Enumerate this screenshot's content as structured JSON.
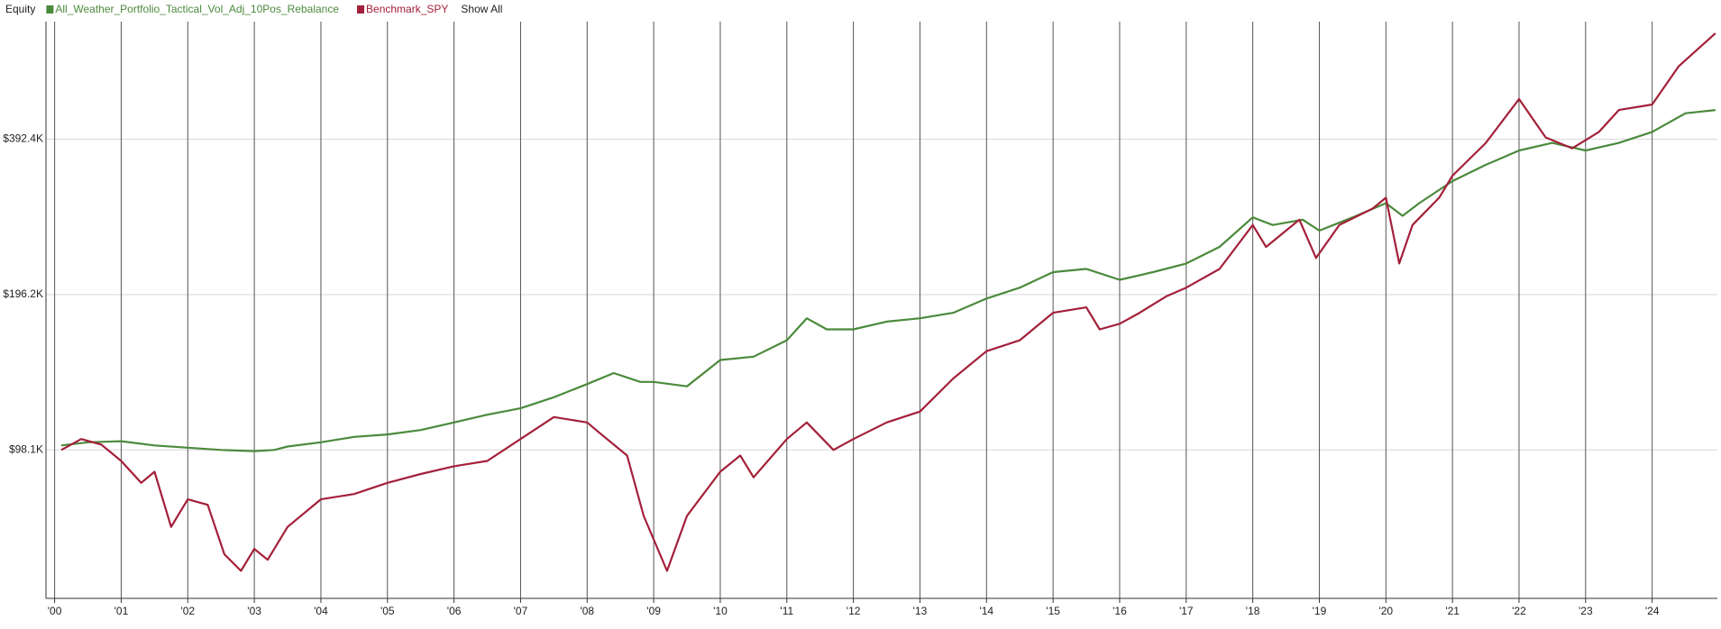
{
  "chart_data": {
    "type": "line",
    "legend_title": "Equity",
    "show_all": "Show All",
    "y_log": true,
    "grid": true,
    "legend_position": "top-left",
    "xlim": [
      1999.87,
      2024.98
    ],
    "xticks": [
      {
        "value": 2000,
        "label": "'00"
      },
      {
        "value": 2001,
        "label": "'01"
      },
      {
        "value": 2002,
        "label": "'02"
      },
      {
        "value": 2003,
        "label": "'03"
      },
      {
        "value": 2004,
        "label": "'04"
      },
      {
        "value": 2005,
        "label": "'05"
      },
      {
        "value": 2006,
        "label": "'06"
      },
      {
        "value": 2007,
        "label": "'07"
      },
      {
        "value": 2008,
        "label": "'08"
      },
      {
        "value": 2009,
        "label": "'09"
      },
      {
        "value": 2010,
        "label": "'10"
      },
      {
        "value": 2011,
        "label": "'11"
      },
      {
        "value": 2012,
        "label": "'12"
      },
      {
        "value": 2013,
        "label": "'13"
      },
      {
        "value": 2014,
        "label": "'14"
      },
      {
        "value": 2015,
        "label": "'15"
      },
      {
        "value": 2016,
        "label": "'16"
      },
      {
        "value": 2017,
        "label": "'17"
      },
      {
        "value": 2018,
        "label": "'18"
      },
      {
        "value": 2019,
        "label": "'19"
      },
      {
        "value": 2020,
        "label": "'20"
      },
      {
        "value": 2021,
        "label": "'21"
      },
      {
        "value": 2022,
        "label": "'22"
      },
      {
        "value": 2023,
        "label": "'23"
      },
      {
        "value": 2024,
        "label": "'24"
      }
    ],
    "ylim": [
      50600,
      662800
    ],
    "yticks": [
      {
        "value": 98100,
        "label": "$98.1K"
      },
      {
        "value": 196200,
        "label": "$196.2K"
      },
      {
        "value": 392400,
        "label": "$392.4K"
      }
    ],
    "series": [
      {
        "name": "All_Weather_Portfolio_Tactical_Vol_Adj_10Pos_Rebalance",
        "color": "#4b8a3c",
        "x": [
          2000.1,
          2000.5,
          2001.0,
          2001.5,
          2002.0,
          2002.5,
          2003.0,
          2003.3,
          2003.5,
          2004.0,
          2004.5,
          2005.0,
          2005.5,
          2006.0,
          2006.5,
          2007.0,
          2007.5,
          2008.0,
          2008.4,
          2008.8,
          2009.0,
          2009.5,
          2010.0,
          2010.5,
          2011.0,
          2011.3,
          2011.6,
          2012.0,
          2012.5,
          2013.0,
          2013.5,
          2014.0,
          2014.5,
          2015.0,
          2015.5,
          2016.0,
          2016.5,
          2017.0,
          2017.5,
          2018.0,
          2018.3,
          2018.75,
          2019.0,
          2019.5,
          2020.0,
          2020.25,
          2020.5,
          2021.0,
          2021.5,
          2022.0,
          2022.5,
          2023.0,
          2023.5,
          2024.0,
          2024.5,
          2024.95
        ],
        "values": [
          100100,
          101500,
          102000,
          100100,
          99100,
          98100,
          97600,
          98100,
          99600,
          101500,
          104000,
          105100,
          107200,
          110900,
          114800,
          118100,
          124100,
          131600,
          138200,
          132900,
          132900,
          130300,
          146500,
          148700,
          160000,
          176500,
          168000,
          168000,
          173900,
          176500,
          180900,
          192700,
          202300,
          216800,
          220000,
          209500,
          216800,
          225300,
          242600,
          276800,
          267500,
          274000,
          261000,
          276800,
          294900,
          278700,
          294900,
          325400,
          350000,
          373100,
          385900,
          373100,
          385900,
          405300,
          440400,
          446900
        ]
      },
      {
        "name": "Benchmark_SPY",
        "color": "#a3203a",
        "x": [
          2000.1,
          2000.4,
          2000.7,
          2001.0,
          2001.3,
          2001.5,
          2001.75,
          2002.0,
          2002.3,
          2002.55,
          2002.8,
          2003.0,
          2003.2,
          2003.5,
          2004.0,
          2004.5,
          2005.0,
          2005.5,
          2006.0,
          2006.5,
          2007.0,
          2007.5,
          2008.0,
          2008.2,
          2008.6,
          2008.85,
          2009.2,
          2009.5,
          2010.0,
          2010.3,
          2010.5,
          2011.0,
          2011.3,
          2011.7,
          2012.0,
          2012.5,
          2013.0,
          2013.5,
          2014.0,
          2014.5,
          2015.0,
          2015.5,
          2015.7,
          2016.0,
          2016.3,
          2016.7,
          2017.0,
          2017.5,
          2018.0,
          2018.2,
          2018.7,
          2018.95,
          2019.3,
          2019.8,
          2020.0,
          2020.2,
          2020.4,
          2020.8,
          2021.0,
          2021.5,
          2022.0,
          2022.4,
          2022.8,
          2023.2,
          2023.5,
          2024.0,
          2024.4,
          2024.95
        ],
        "values": [
          98100,
          103000,
          100500,
          93400,
          84700,
          89000,
          69600,
          78700,
          76800,
          61600,
          57200,
          63100,
          60100,
          69600,
          78700,
          80600,
          84700,
          88100,
          91200,
          93400,
          103000,
          113600,
          110900,
          105500,
          95700,
          73100,
          57200,
          73100,
          89000,
          95700,
          86800,
          103000,
          110900,
          98100,
          103000,
          110900,
          116400,
          134900,
          152400,
          160000,
          180900,
          185300,
          168000,
          172200,
          180900,
          194600,
          202300,
          219900,
          267500,
          242600,
          274000,
          230900,
          267500,
          287800,
          302200,
          225300,
          267500,
          302200,
          333300,
          385900,
          469300,
          395500,
          376600,
          405300,
          446900,
          458000,
          543500,
          629400
        ]
      }
    ]
  }
}
